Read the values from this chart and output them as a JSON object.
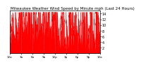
{
  "title": "Milwaukee Weather Wind Speed by Minute mph (Last 24 Hours)",
  "title_fontsize": 4.0,
  "bg_color": "#ffffff",
  "line_color": "#ff0000",
  "fill_color": "#ff0000",
  "ylim": [
    0,
    15
  ],
  "yticks": [
    2,
    4,
    6,
    8,
    10,
    12,
    14
  ],
  "ytick_labels": [
    "2",
    "4",
    "6",
    "8",
    "10",
    "12",
    "14"
  ],
  "ytick_fontsize": 3.5,
  "xtick_fontsize": 3.0,
  "n_points": 1440,
  "seed": 7,
  "grid_color": "#999999",
  "spine_color": "#000000",
  "hour_step": 3,
  "x_hour_labels": [
    "12a",
    "3a",
    "6a",
    "9a",
    "12p",
    "3p",
    "6p",
    "9p",
    "12a"
  ]
}
